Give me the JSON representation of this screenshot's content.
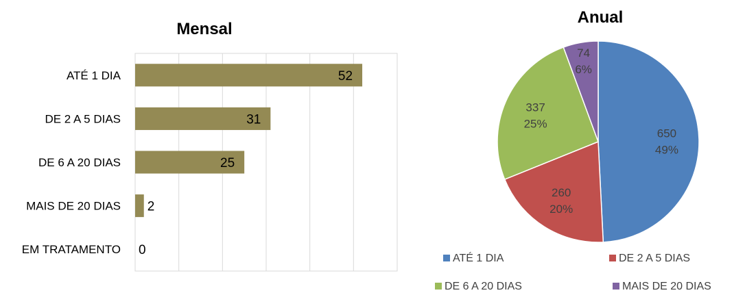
{
  "chart_data": [
    {
      "type": "bar",
      "orientation": "horizontal",
      "title": "Mensal",
      "categories": [
        "ATÉ 1 DIA",
        "DE 2 A 5 DIAS",
        "DE 6 A 20 DIAS",
        "MAIS DE 20 DIAS",
        "EM TRATAMENTO"
      ],
      "values": [
        52,
        31,
        25,
        2,
        0
      ],
      "xlim": [
        0,
        60
      ],
      "grid": true,
      "bar_color": "#948a54"
    },
    {
      "type": "pie",
      "title": "Anual",
      "labels": [
        "ATÉ 1 DIA",
        "DE 2 A 5 DIAS",
        "DE 6 A 20 DIAS",
        "MAIS DE 20 DIAS"
      ],
      "values": [
        650,
        260,
        337,
        74
      ],
      "percent_labels": [
        "49%",
        "20%",
        "25%",
        "6%"
      ],
      "colors": [
        "#4f81bd",
        "#c0504d",
        "#9bbb59",
        "#8064a2"
      ],
      "legend_position": "bottom"
    }
  ]
}
